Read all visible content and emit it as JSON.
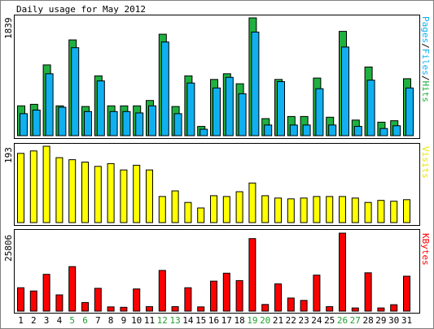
{
  "title": "Daily usage for May 2012",
  "colors": {
    "hits": "#20b040",
    "files": "#10b0f0",
    "pages": "#10b0f0",
    "visits": "#ffff00",
    "kbytes": "#ff0000",
    "weekday_label": "#000000",
    "weekend_label": "#20a030"
  },
  "chart_data": [
    {
      "type": "bar",
      "panel": "hits-files-pages",
      "ymax_label": "1839",
      "legend": {
        "pages": "Pages",
        "sep1": "/",
        "files": "Files",
        "sep2": "/",
        "hits": "Hits"
      },
      "ylim": [
        0,
        1839
      ],
      "categories": [
        "1",
        "2",
        "3",
        "4",
        "5",
        "6",
        "7",
        "8",
        "9",
        "10",
        "11",
        "12",
        "13",
        "14",
        "15",
        "16",
        "17",
        "18",
        "19",
        "20",
        "21",
        "22",
        "23",
        "24",
        "25",
        "26",
        "27",
        "28",
        "29",
        "30",
        "31"
      ],
      "series": [
        {
          "name": "Hits",
          "values": [
            466,
            490,
            1105,
            466,
            1495,
            455,
            934,
            466,
            466,
            466,
            549,
            1584,
            455,
            934,
            144,
            878,
            966,
            811,
            1839,
            266,
            878,
            299,
            299,
            899,
            288,
            1629,
            244,
            1072,
            211,
            233,
            889
          ]
        },
        {
          "name": "Files",
          "values": [
            344,
            399,
            966,
            444,
            1373,
            377,
            855,
            377,
            377,
            355,
            466,
            1462,
            344,
            822,
            100,
            744,
            911,
            655,
            1617,
            166,
            844,
            166,
            166,
            733,
            166,
            1384,
            144,
            866,
            111,
            155,
            744
          ]
        },
        {
          "name": "Pages",
          "values": [
            0,
            0,
            0,
            0,
            0,
            0,
            0,
            0,
            0,
            0,
            0,
            0,
            0,
            0,
            0,
            0,
            0,
            0,
            0,
            0,
            0,
            0,
            0,
            0,
            0,
            0,
            0,
            0,
            0,
            0,
            0
          ]
        }
      ]
    },
    {
      "type": "bar",
      "panel": "visits",
      "ymax_label": "193",
      "legend": {
        "visits": "Visits"
      },
      "ylim": [
        0,
        193
      ],
      "categories": [
        "1",
        "2",
        "3",
        "4",
        "5",
        "6",
        "7",
        "8",
        "9",
        "10",
        "11",
        "12",
        "13",
        "14",
        "15",
        "16",
        "17",
        "18",
        "19",
        "20",
        "21",
        "22",
        "23",
        "24",
        "25",
        "26",
        "27",
        "28",
        "29",
        "30",
        "31"
      ],
      "series": [
        {
          "name": "Visits",
          "values": [
            175,
            181,
            193,
            164,
            159,
            153,
            142,
            149,
            133,
            145,
            133,
            66,
            80,
            51,
            37,
            68,
            66,
            78,
            100,
            68,
            62,
            60,
            62,
            66,
            66,
            66,
            62,
            51,
            56,
            54,
            58
          ]
        }
      ]
    },
    {
      "type": "bar",
      "panel": "kbytes",
      "ymax_label": "25806",
      "legend": {
        "kbytes": "KBytes"
      },
      "ylim": [
        0,
        25806
      ],
      "categories": [
        "1",
        "2",
        "3",
        "4",
        "5",
        "6",
        "7",
        "8",
        "9",
        "10",
        "11",
        "12",
        "13",
        "14",
        "15",
        "16",
        "17",
        "18",
        "19",
        "20",
        "21",
        "22",
        "23",
        "24",
        "25",
        "26",
        "27",
        "28",
        "29",
        "30",
        "31"
      ],
      "series": [
        {
          "name": "KBytes",
          "values": [
            7730,
            6670,
            12180,
            5380,
            14720,
            2850,
            7560,
            1400,
            1270,
            7330,
            1480,
            13470,
            1480,
            7730,
            1400,
            9910,
            12550,
            10120,
            24000,
            2210,
            9020,
            4330,
            3550,
            11920,
            1480,
            25806,
            1060,
            12690,
            1060,
            2130,
            11550
          ]
        }
      ]
    }
  ],
  "weekend_days": [
    "5",
    "6",
    "12",
    "13",
    "19",
    "20",
    "26",
    "27"
  ]
}
